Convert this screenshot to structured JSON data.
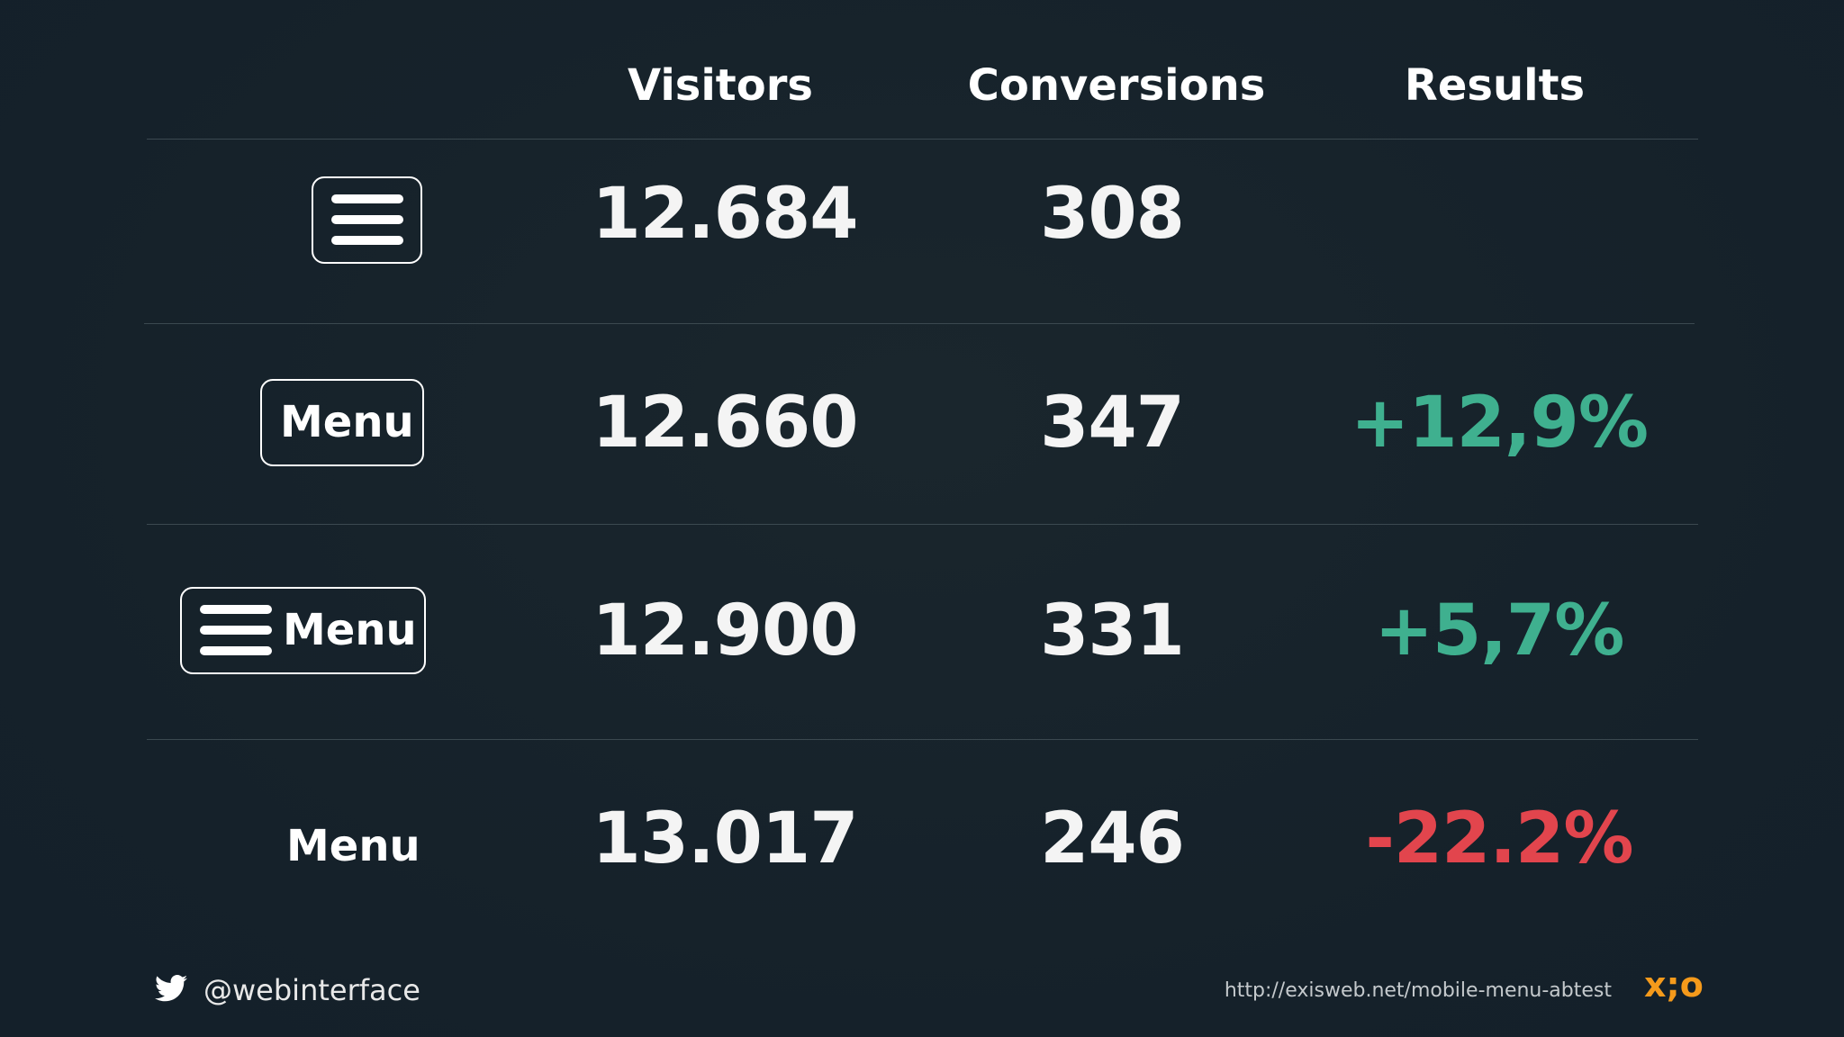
{
  "table": {
    "headers": {
      "visitors": "Visitors",
      "conversions": "Conversions",
      "results": "Results"
    },
    "rows": [
      {
        "variant_icon": "hamburger-icon",
        "variant_label": "",
        "visitors": "12.684",
        "conversions": "308",
        "result": ""
      },
      {
        "variant_icon": "",
        "variant_label": "Menu",
        "visitors": "12.660",
        "conversions": "347",
        "result": "+12,9%"
      },
      {
        "variant_icon": "hamburger-icon",
        "variant_label": "Menu",
        "visitors": "12.900",
        "conversions": "331",
        "result": "+5,7%"
      },
      {
        "variant_icon": "",
        "variant_label": "Menu",
        "visitors": "13.017",
        "conversions": "246",
        "result": "-22.2%"
      }
    ]
  },
  "footer": {
    "twitter_icon": "twitter-icon",
    "handle": "@webinterface",
    "url": "http://exisweb.net/mobile-menu-abtest",
    "logo": "x;o"
  },
  "colors": {
    "background": "#16222a",
    "positive": "#3fb08f",
    "negative": "#e2454d",
    "logo": "#f59a1b"
  }
}
